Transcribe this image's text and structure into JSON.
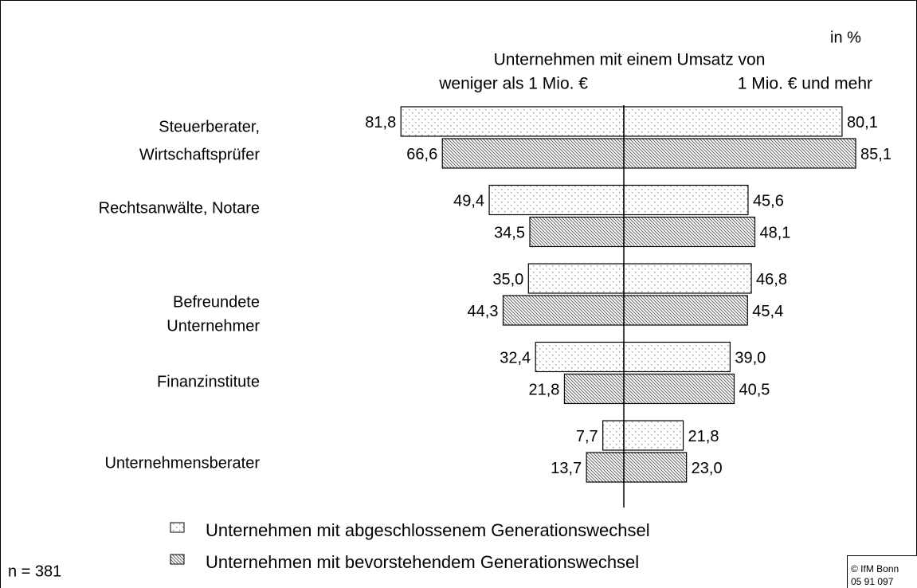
{
  "chart_data": {
    "type": "butterfly-bar",
    "unit_label": "in %",
    "title": "Unternehmen mit einem Umsatz von",
    "sides": [
      "weniger als 1 Mio. €",
      "1 Mio. € und mehr"
    ],
    "categories": [
      [
        "Steuerberater,",
        "Wirtschaftsprüfer"
      ],
      [
        "Rechtsanwälte, Notare"
      ],
      [
        "Befreundete",
        "Unternehmer"
      ],
      [
        "Finanzinstitute"
      ],
      [
        "Unternehmensberater"
      ]
    ],
    "series": [
      {
        "name": "Unternehmen mit abgeschlossenem Generationswechsel",
        "pattern": "dots",
        "values": [
          [
            81.8,
            80.1
          ],
          [
            49.4,
            45.6
          ],
          [
            35.0,
            46.8
          ],
          [
            32.4,
            39.0
          ],
          [
            7.7,
            21.8
          ]
        ],
        "value_labels": [
          [
            "81,8",
            "80,1"
          ],
          [
            "49,4",
            "45,6"
          ],
          [
            "35,0",
            "46,8"
          ],
          [
            "32,4",
            "39,0"
          ],
          [
            "7,7",
            "21,8"
          ]
        ]
      },
      {
        "name": "Unternehmen mit bevorstehendem Generationswechsel",
        "pattern": "hatch",
        "values": [
          [
            66.6,
            85.1
          ],
          [
            34.5,
            48.1
          ],
          [
            44.3,
            45.4
          ],
          [
            21.8,
            40.5
          ],
          [
            13.7,
            23.0
          ]
        ],
        "value_labels": [
          [
            "66,6",
            "85,1"
          ],
          [
            "34,5",
            "48,1"
          ],
          [
            "44,3",
            "45,4"
          ],
          [
            "21,8",
            "40,5"
          ],
          [
            "13,7",
            "23,0"
          ]
        ]
      }
    ],
    "note": "n = 381",
    "source": [
      "© IfM Bonn",
      "05 91 097"
    ]
  }
}
